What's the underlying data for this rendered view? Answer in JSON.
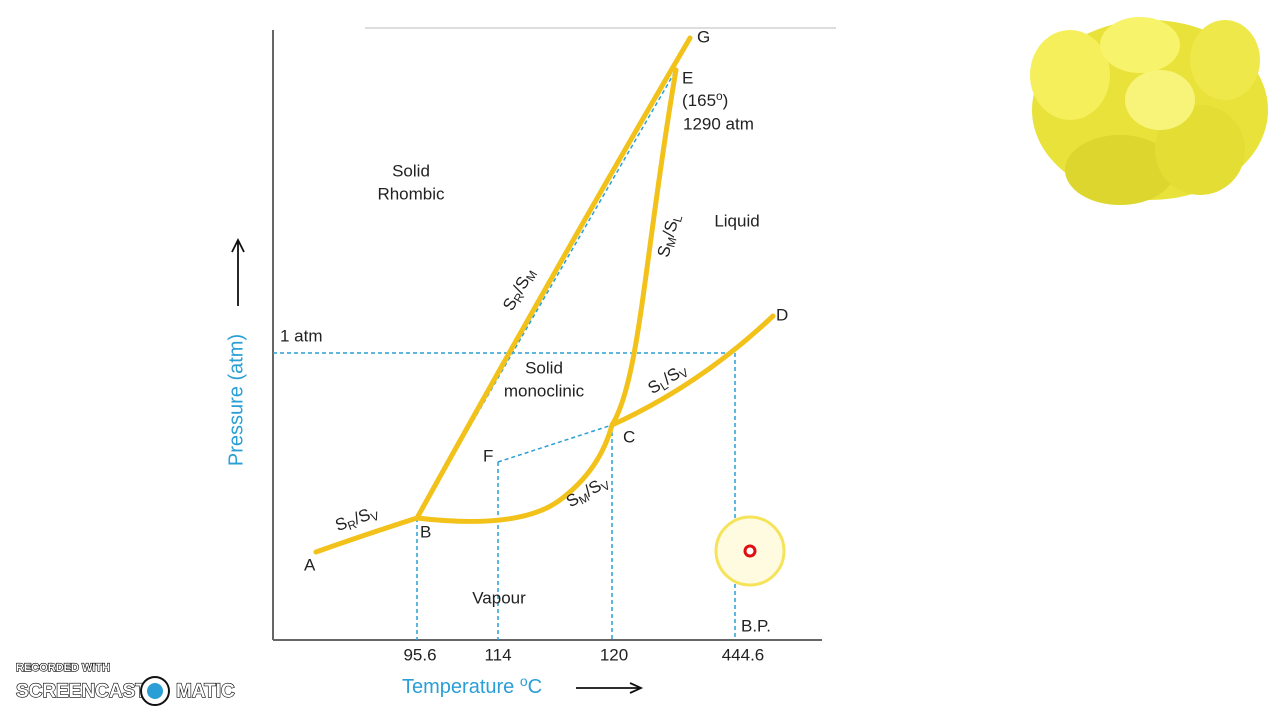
{
  "points": [
    "A",
    "B",
    "C",
    "D",
    "E",
    "F",
    "G"
  ],
  "regions": [
    {
      "lines": [
        "Solid",
        "Rhombic"
      ]
    },
    {
      "lines": [
        "Liquid"
      ]
    },
    {
      "lines": [
        "Solid",
        "monoclinic"
      ]
    },
    {
      "lines": [
        "Vapour"
      ]
    }
  ],
  "triple_point_E": {
    "temperature": [
      "(165",
      "o",
      ")"
    ],
    "pressure": "1290 atm"
  },
  "curves": [
    [
      "S",
      "R",
      "/",
      "S",
      "M"
    ],
    [
      "S",
      "M",
      "/",
      "S",
      "L"
    ],
    [
      "S",
      "L",
      "/",
      "S",
      "V"
    ],
    [
      "S",
      "M",
      "/",
      "S",
      "V"
    ],
    [
      "S",
      "R",
      "/",
      "S",
      "V"
    ]
  ],
  "pressure_line": "1 atm",
  "boiling_point": "B.P.",
  "x_ticks": [
    "95.6",
    "114",
    "120",
    "444.6"
  ],
  "y_axis_label": "Pressure (atm)",
  "x_axis_label": [
    "Temperature ",
    "o",
    "C"
  ],
  "watermark": [
    "RECORDED WITH",
    "SCREENCAST",
    "MATIC"
  ]
}
